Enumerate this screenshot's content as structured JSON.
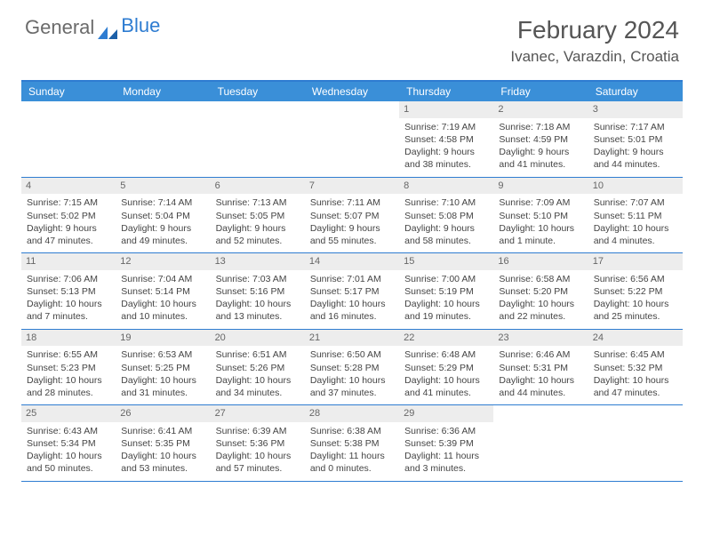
{
  "brand": {
    "part1": "General",
    "part2": "Blue"
  },
  "title": "February 2024",
  "location": "Ivanec, Varazdin, Croatia",
  "dayNames": [
    "Sunday",
    "Monday",
    "Tuesday",
    "Wednesday",
    "Thursday",
    "Friday",
    "Saturday"
  ],
  "colors": {
    "accent": "#2e7cd1",
    "headerBar": "#3a8fd8",
    "dayNumBg": "#ededed",
    "text": "#444"
  },
  "weeks": [
    [
      null,
      null,
      null,
      null,
      {
        "n": "1",
        "sr": "Sunrise: 7:19 AM",
        "ss": "Sunset: 4:58 PM",
        "dl1": "Daylight: 9 hours",
        "dl2": "and 38 minutes."
      },
      {
        "n": "2",
        "sr": "Sunrise: 7:18 AM",
        "ss": "Sunset: 4:59 PM",
        "dl1": "Daylight: 9 hours",
        "dl2": "and 41 minutes."
      },
      {
        "n": "3",
        "sr": "Sunrise: 7:17 AM",
        "ss": "Sunset: 5:01 PM",
        "dl1": "Daylight: 9 hours",
        "dl2": "and 44 minutes."
      }
    ],
    [
      {
        "n": "4",
        "sr": "Sunrise: 7:15 AM",
        "ss": "Sunset: 5:02 PM",
        "dl1": "Daylight: 9 hours",
        "dl2": "and 47 minutes."
      },
      {
        "n": "5",
        "sr": "Sunrise: 7:14 AM",
        "ss": "Sunset: 5:04 PM",
        "dl1": "Daylight: 9 hours",
        "dl2": "and 49 minutes."
      },
      {
        "n": "6",
        "sr": "Sunrise: 7:13 AM",
        "ss": "Sunset: 5:05 PM",
        "dl1": "Daylight: 9 hours",
        "dl2": "and 52 minutes."
      },
      {
        "n": "7",
        "sr": "Sunrise: 7:11 AM",
        "ss": "Sunset: 5:07 PM",
        "dl1": "Daylight: 9 hours",
        "dl2": "and 55 minutes."
      },
      {
        "n": "8",
        "sr": "Sunrise: 7:10 AM",
        "ss": "Sunset: 5:08 PM",
        "dl1": "Daylight: 9 hours",
        "dl2": "and 58 minutes."
      },
      {
        "n": "9",
        "sr": "Sunrise: 7:09 AM",
        "ss": "Sunset: 5:10 PM",
        "dl1": "Daylight: 10 hours",
        "dl2": "and 1 minute."
      },
      {
        "n": "10",
        "sr": "Sunrise: 7:07 AM",
        "ss": "Sunset: 5:11 PM",
        "dl1": "Daylight: 10 hours",
        "dl2": "and 4 minutes."
      }
    ],
    [
      {
        "n": "11",
        "sr": "Sunrise: 7:06 AM",
        "ss": "Sunset: 5:13 PM",
        "dl1": "Daylight: 10 hours",
        "dl2": "and 7 minutes."
      },
      {
        "n": "12",
        "sr": "Sunrise: 7:04 AM",
        "ss": "Sunset: 5:14 PM",
        "dl1": "Daylight: 10 hours",
        "dl2": "and 10 minutes."
      },
      {
        "n": "13",
        "sr": "Sunrise: 7:03 AM",
        "ss": "Sunset: 5:16 PM",
        "dl1": "Daylight: 10 hours",
        "dl2": "and 13 minutes."
      },
      {
        "n": "14",
        "sr": "Sunrise: 7:01 AM",
        "ss": "Sunset: 5:17 PM",
        "dl1": "Daylight: 10 hours",
        "dl2": "and 16 minutes."
      },
      {
        "n": "15",
        "sr": "Sunrise: 7:00 AM",
        "ss": "Sunset: 5:19 PM",
        "dl1": "Daylight: 10 hours",
        "dl2": "and 19 minutes."
      },
      {
        "n": "16",
        "sr": "Sunrise: 6:58 AM",
        "ss": "Sunset: 5:20 PM",
        "dl1": "Daylight: 10 hours",
        "dl2": "and 22 minutes."
      },
      {
        "n": "17",
        "sr": "Sunrise: 6:56 AM",
        "ss": "Sunset: 5:22 PM",
        "dl1": "Daylight: 10 hours",
        "dl2": "and 25 minutes."
      }
    ],
    [
      {
        "n": "18",
        "sr": "Sunrise: 6:55 AM",
        "ss": "Sunset: 5:23 PM",
        "dl1": "Daylight: 10 hours",
        "dl2": "and 28 minutes."
      },
      {
        "n": "19",
        "sr": "Sunrise: 6:53 AM",
        "ss": "Sunset: 5:25 PM",
        "dl1": "Daylight: 10 hours",
        "dl2": "and 31 minutes."
      },
      {
        "n": "20",
        "sr": "Sunrise: 6:51 AM",
        "ss": "Sunset: 5:26 PM",
        "dl1": "Daylight: 10 hours",
        "dl2": "and 34 minutes."
      },
      {
        "n": "21",
        "sr": "Sunrise: 6:50 AM",
        "ss": "Sunset: 5:28 PM",
        "dl1": "Daylight: 10 hours",
        "dl2": "and 37 minutes."
      },
      {
        "n": "22",
        "sr": "Sunrise: 6:48 AM",
        "ss": "Sunset: 5:29 PM",
        "dl1": "Daylight: 10 hours",
        "dl2": "and 41 minutes."
      },
      {
        "n": "23",
        "sr": "Sunrise: 6:46 AM",
        "ss": "Sunset: 5:31 PM",
        "dl1": "Daylight: 10 hours",
        "dl2": "and 44 minutes."
      },
      {
        "n": "24",
        "sr": "Sunrise: 6:45 AM",
        "ss": "Sunset: 5:32 PM",
        "dl1": "Daylight: 10 hours",
        "dl2": "and 47 minutes."
      }
    ],
    [
      {
        "n": "25",
        "sr": "Sunrise: 6:43 AM",
        "ss": "Sunset: 5:34 PM",
        "dl1": "Daylight: 10 hours",
        "dl2": "and 50 minutes."
      },
      {
        "n": "26",
        "sr": "Sunrise: 6:41 AM",
        "ss": "Sunset: 5:35 PM",
        "dl1": "Daylight: 10 hours",
        "dl2": "and 53 minutes."
      },
      {
        "n": "27",
        "sr": "Sunrise: 6:39 AM",
        "ss": "Sunset: 5:36 PM",
        "dl1": "Daylight: 10 hours",
        "dl2": "and 57 minutes."
      },
      {
        "n": "28",
        "sr": "Sunrise: 6:38 AM",
        "ss": "Sunset: 5:38 PM",
        "dl1": "Daylight: 11 hours",
        "dl2": "and 0 minutes."
      },
      {
        "n": "29",
        "sr": "Sunrise: 6:36 AM",
        "ss": "Sunset: 5:39 PM",
        "dl1": "Daylight: 11 hours",
        "dl2": "and 3 minutes."
      },
      null,
      null
    ]
  ]
}
